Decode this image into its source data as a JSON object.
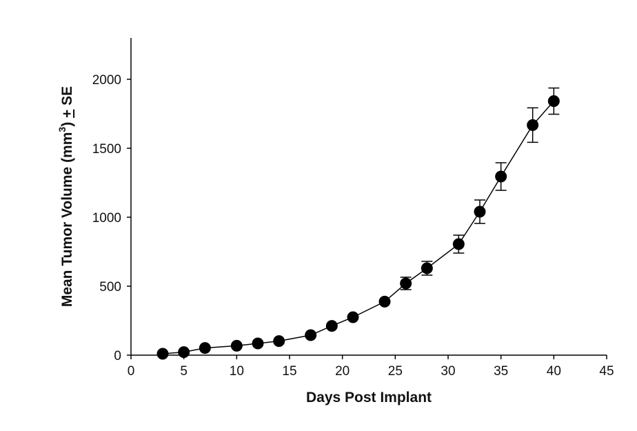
{
  "chart_data": {
    "type": "scatter",
    "title": "",
    "xlabel": "Days Post Implant",
    "ylabel": {
      "main": "Mean Tumor Volume (mm",
      "superscript": "3",
      "suffix": ") ",
      "pm": "+",
      "se": " SE"
    },
    "xlim": [
      0,
      45
    ],
    "ylim": [
      0,
      2300
    ],
    "xticks": [
      0,
      5,
      10,
      15,
      20,
      25,
      30,
      35,
      40,
      45
    ],
    "yticks": [
      0,
      500,
      1000,
      1500,
      2000
    ],
    "grid": false,
    "series": [
      {
        "marker": "filled-circle",
        "line": "solid",
        "color": "#000000",
        "points": [
          {
            "x": 3,
            "y": 10,
            "err": 0
          },
          {
            "x": 5,
            "y": 22,
            "err": 0
          },
          {
            "x": 7,
            "y": 52,
            "err": 0
          },
          {
            "x": 10,
            "y": 68,
            "err": 0
          },
          {
            "x": 12,
            "y": 85,
            "err": 0
          },
          {
            "x": 14,
            "y": 102,
            "err": 0
          },
          {
            "x": 17,
            "y": 145,
            "err": 0
          },
          {
            "x": 19,
            "y": 212,
            "err": 0
          },
          {
            "x": 21,
            "y": 275,
            "err": 0
          },
          {
            "x": 24,
            "y": 388,
            "err": 0
          },
          {
            "x": 26,
            "y": 520,
            "err": 45
          },
          {
            "x": 28,
            "y": 630,
            "err": 50
          },
          {
            "x": 31,
            "y": 805,
            "err": 65
          },
          {
            "x": 33,
            "y": 1040,
            "err": 85
          },
          {
            "x": 35,
            "y": 1295,
            "err": 100
          },
          {
            "x": 38,
            "y": 1668,
            "err": 125
          },
          {
            "x": 40,
            "y": 1842,
            "err": 95
          }
        ]
      }
    ]
  }
}
